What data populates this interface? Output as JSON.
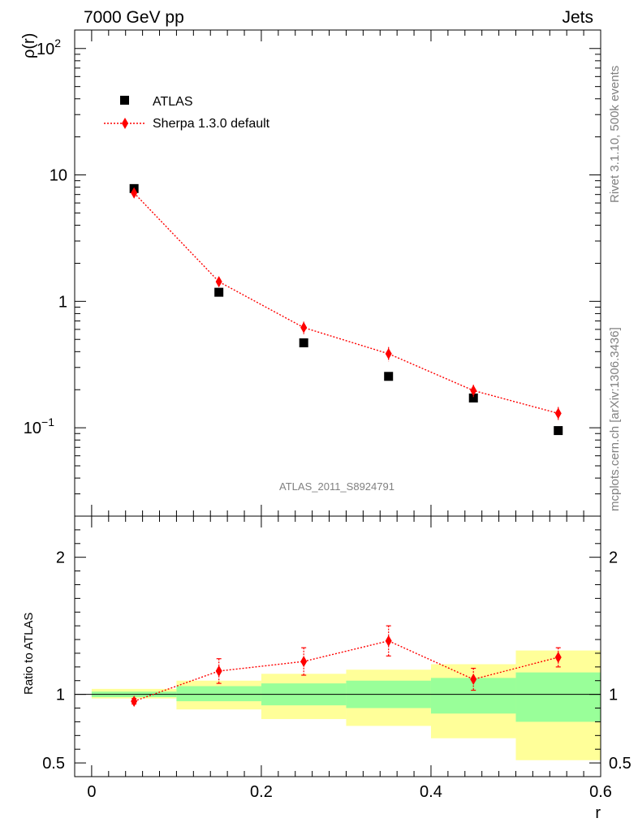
{
  "header": {
    "left": "7000 GeV pp",
    "right": "Jets"
  },
  "side_text": {
    "top": "Rivet 3.1.10,  500k events",
    "bottom": "mcplots.cern.ch [arXiv:1306.3436]"
  },
  "watermark": "ATLAS_2011_S8924791",
  "chart_data": [
    {
      "type": "scatter",
      "panel": "main",
      "ylabel": "ρ(r)",
      "xlabel": "r",
      "yscale": "log",
      "xlim": [
        -0.02,
        0.6
      ],
      "ylim": [
        0.02,
        140
      ],
      "y_ticks": [
        {
          "v": 0.1,
          "base": "10",
          "exp": "−1"
        },
        {
          "v": 1,
          "base": "1",
          "exp": ""
        },
        {
          "v": 10,
          "base": "10",
          "exp": ""
        },
        {
          "v": 100,
          "base": "10",
          "exp": "2"
        }
      ],
      "legend": {
        "position": "top-left",
        "atlas": "ATLAS",
        "sherpa": "Sherpa 1.3.0 default"
      },
      "series": [
        {
          "name": "ATLAS",
          "marker": "square",
          "color": "#000000",
          "x": [
            0.05,
            0.15,
            0.25,
            0.35,
            0.45,
            0.55
          ],
          "y": [
            7.8,
            1.18,
            0.47,
            0.255,
            0.172,
            0.095
          ]
        },
        {
          "name": "Sherpa 1.3.0 default",
          "marker": "diamond",
          "color": "#ff0000",
          "line": "dotted",
          "x": [
            0.05,
            0.15,
            0.25,
            0.35,
            0.45,
            0.55
          ],
          "y": [
            7.2,
            1.43,
            0.62,
            0.385,
            0.197,
            0.13
          ],
          "err": [
            0.35,
            0.12,
            0.07,
            0.05,
            0.022,
            0.016
          ]
        }
      ]
    },
    {
      "type": "scatter",
      "panel": "ratio",
      "ylabel": "Ratio to ATLAS",
      "xlabel": "r",
      "xlim": [
        -0.02,
        0.6
      ],
      "ylim": [
        0.4,
        2.3
      ],
      "x_ticks": [
        0,
        0.2,
        0.4,
        0.6
      ],
      "x_tick_labels": [
        "0",
        "0.2",
        "0.4",
        "0.6"
      ],
      "y_ticks": [
        0.5,
        1,
        2
      ],
      "y_tick_labels": [
        "0.5",
        "1",
        "2"
      ],
      "bands": {
        "bins": [
          [
            0.0,
            0.1
          ],
          [
            0.1,
            0.2
          ],
          [
            0.2,
            0.3
          ],
          [
            0.3,
            0.4
          ],
          [
            0.4,
            0.5
          ],
          [
            0.5,
            0.6
          ]
        ],
        "yellow": [
          [
            0.97,
            1.04
          ],
          [
            0.89,
            1.1
          ],
          [
            0.82,
            1.15
          ],
          [
            0.77,
            1.18
          ],
          [
            0.68,
            1.22
          ],
          [
            0.52,
            1.32
          ]
        ],
        "green": [
          [
            0.98,
            1.02
          ],
          [
            0.95,
            1.06
          ],
          [
            0.92,
            1.08
          ],
          [
            0.9,
            1.1
          ],
          [
            0.86,
            1.12
          ],
          [
            0.8,
            1.16
          ]
        ]
      },
      "series": [
        {
          "name": "Sherpa 1.3.0 default / ATLAS",
          "marker": "diamond",
          "color": "#ff0000",
          "line": "dotted",
          "x": [
            0.05,
            0.15,
            0.25,
            0.35,
            0.45,
            0.55
          ],
          "y": [
            0.95,
            1.17,
            1.24,
            1.39,
            1.11,
            1.27
          ],
          "err": [
            0.02,
            0.09,
            0.1,
            0.11,
            0.08,
            0.07
          ]
        }
      ]
    }
  ]
}
